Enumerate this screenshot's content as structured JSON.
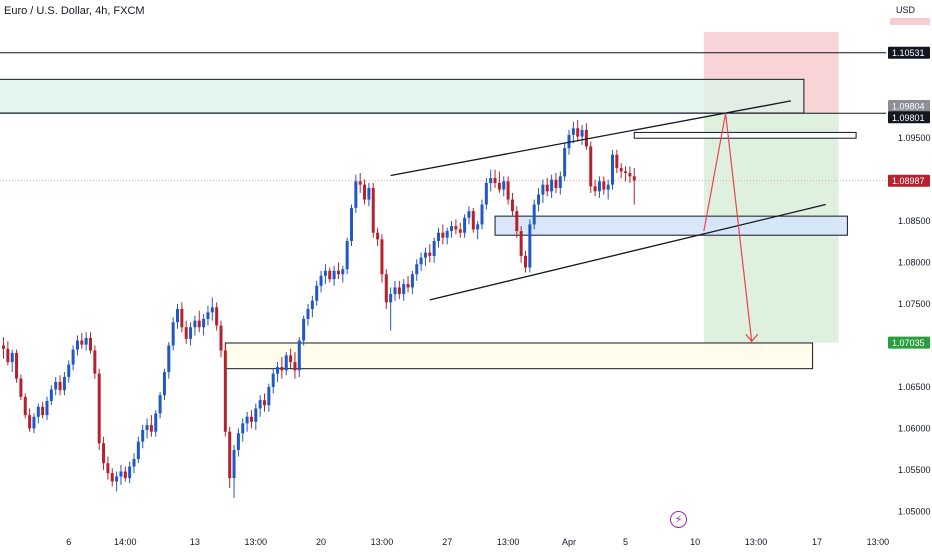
{
  "header": {
    "symbol_title": "Euro / U.S. Dollar, 4h, FXCM"
  },
  "chart_data": {
    "type": "candlestick",
    "title": "Euro / U.S. Dollar, 4h, FXCM",
    "currency_label": "USD",
    "ylim": [
      1.0475,
      1.1095
    ],
    "y_ticks": [
      1.05,
      1.055,
      1.06,
      1.065,
      1.07,
      1.075,
      1.08,
      1.085,
      1.095
    ],
    "x_labels": [
      {
        "i": 15,
        "label": "6"
      },
      {
        "i": 28,
        "label": "14:00"
      },
      {
        "i": 44,
        "label": "13"
      },
      {
        "i": 58,
        "label": "13:00"
      },
      {
        "i": 73,
        "label": "20"
      },
      {
        "i": 87,
        "label": "13:00"
      },
      {
        "i": 102,
        "label": "27"
      },
      {
        "i": 116,
        "label": "13:00"
      },
      {
        "i": 130,
        "label": "Apr"
      },
      {
        "i": 143,
        "label": "5"
      },
      {
        "i": 159,
        "label": "10"
      },
      {
        "i": 173,
        "label": "13:00"
      },
      {
        "i": 187,
        "label": "17"
      },
      {
        "i": 201,
        "label": "13:00"
      }
    ],
    "price_labels": [
      {
        "value": "1.10531",
        "price": 1.10531,
        "style": "dark"
      },
      {
        "value": "1.09804",
        "price": 1.09804,
        "style": "grey"
      },
      {
        "value": "1.09801",
        "price": 1.09801,
        "style": "dark"
      },
      {
        "value": "1.08987",
        "price": 1.08987,
        "style": "red"
      },
      {
        "value": "1.07035",
        "price": 1.07035,
        "style": "green"
      }
    ],
    "horizontal_lines": [
      1.10531,
      1.09801
    ],
    "zones": [
      {
        "name": "supply-zone",
        "x1": -1,
        "x2": 184,
        "y1": 1.09804,
        "y2": 1.1021,
        "fill": "#dcf2ea",
        "stroke": "#131722"
      },
      {
        "name": "small-resistance-box",
        "x1": 145,
        "x2": 196,
        "y1": 1.095,
        "y2": 1.0957,
        "fill": "#ffffff",
        "stroke": "#131722"
      },
      {
        "name": "mid-support-box",
        "x1": 113,
        "x2": 194,
        "y1": 1.0833,
        "y2": 1.0856,
        "fill": "#d4e6f9",
        "stroke": "#131722"
      },
      {
        "name": "demand-zone",
        "x1": 51,
        "x2": 186,
        "y1": 1.0672,
        "y2": 1.0703,
        "fill": "#fefce9",
        "stroke": "#131722"
      }
    ],
    "position": {
      "x1": 161,
      "x2": 192,
      "entry": 1.09804,
      "stop": 1.1078,
      "target": 1.07035,
      "stop_color": "#f7ccd0",
      "target_color": "#d8efd8"
    },
    "trend_lines": [
      {
        "name": "upper-channel-line",
        "x1": 89,
        "y1": 1.0905,
        "x2": 181,
        "y2": 1.0995
      },
      {
        "name": "lower-channel-line",
        "x1": 98,
        "y1": 1.0755,
        "x2": 189,
        "y2": 1.087
      }
    ],
    "projection": [
      {
        "x": 161,
        "y": 1.0838
      },
      {
        "x": 166,
        "y": 1.098
      },
      {
        "x": 172,
        "y": 1.0705
      }
    ],
    "candles": [
      [
        1.07,
        1.071,
        1.0684,
        1.0696
      ],
      [
        1.0696,
        1.0705,
        1.0676,
        1.068
      ],
      [
        1.068,
        1.0695,
        1.0668,
        1.0691
      ],
      [
        1.0691,
        1.0695,
        1.0655,
        1.066
      ],
      [
        1.066,
        1.0665,
        1.0634,
        1.0638
      ],
      [
        1.0638,
        1.0642,
        1.0612,
        1.0616
      ],
      [
        1.0616,
        1.0624,
        1.0596,
        1.06
      ],
      [
        1.06,
        1.0618,
        1.0594,
        1.0614
      ],
      [
        1.0614,
        1.063,
        1.0606,
        1.0626
      ],
      [
        1.0626,
        1.0632,
        1.0612,
        1.0616
      ],
      [
        1.0616,
        1.0638,
        1.061,
        1.0633
      ],
      [
        1.0633,
        1.0652,
        1.0628,
        1.0647
      ],
      [
        1.0647,
        1.0662,
        1.064,
        1.0656
      ],
      [
        1.0656,
        1.0664,
        1.064,
        1.0646
      ],
      [
        1.0646,
        1.0668,
        1.064,
        1.0662
      ],
      [
        1.0662,
        1.0682,
        1.0655,
        1.0677
      ],
      [
        1.0677,
        1.07,
        1.067,
        1.0695
      ],
      [
        1.0695,
        1.0712,
        1.0688,
        1.0706
      ],
      [
        1.0706,
        1.0715,
        1.0696,
        1.0701
      ],
      [
        1.0701,
        1.0716,
        1.0694,
        1.0709
      ],
      [
        1.0709,
        1.0716,
        1.069,
        1.0694
      ],
      [
        1.0694,
        1.07,
        1.066,
        1.0666
      ],
      [
        1.0666,
        1.0672,
        1.0574,
        1.0582
      ],
      [
        1.0582,
        1.059,
        1.055,
        1.0558
      ],
      [
        1.0558,
        1.0566,
        1.0538,
        1.0546
      ],
      [
        1.0546,
        1.0552,
        1.053,
        1.0536
      ],
      [
        1.0536,
        1.0548,
        1.0524,
        1.0542
      ],
      [
        1.0542,
        1.0556,
        1.0532,
        1.0548
      ],
      [
        1.0548,
        1.0554,
        1.0536,
        1.054
      ],
      [
        1.054,
        1.056,
        1.0534,
        1.0554
      ],
      [
        1.0554,
        1.057,
        1.0546,
        1.0563
      ],
      [
        1.0563,
        1.059,
        1.0558,
        1.0584
      ],
      [
        1.0584,
        1.0604,
        1.0576,
        1.0598
      ],
      [
        1.0598,
        1.0612,
        1.0588,
        1.0604
      ],
      [
        1.0604,
        1.0616,
        1.059,
        1.0596
      ],
      [
        1.0596,
        1.0622,
        1.059,
        1.0618
      ],
      [
        1.0618,
        1.0644,
        1.0612,
        1.064
      ],
      [
        1.064,
        1.0672,
        1.0634,
        1.0668
      ],
      [
        1.0668,
        1.0704,
        1.066,
        1.07
      ],
      [
        1.07,
        1.0734,
        1.0694,
        1.0728
      ],
      [
        1.0728,
        1.075,
        1.072,
        1.0744
      ],
      [
        1.0744,
        1.0752,
        1.0716,
        1.0722
      ],
      [
        1.0722,
        1.073,
        1.0702,
        1.0708
      ],
      [
        1.0708,
        1.0728,
        1.07,
        1.0722
      ],
      [
        1.0722,
        1.0736,
        1.0712,
        1.073
      ],
      [
        1.073,
        1.0742,
        1.0716,
        1.0722
      ],
      [
        1.0722,
        1.0738,
        1.0712,
        1.0732
      ],
      [
        1.0732,
        1.0748,
        1.0724,
        1.074
      ],
      [
        1.074,
        1.0758,
        1.073,
        1.0746
      ],
      [
        1.0746,
        1.0752,
        1.0718,
        1.0724
      ],
      [
        1.0724,
        1.073,
        1.0686,
        1.0694
      ],
      [
        1.0694,
        1.07,
        1.059,
        1.0596
      ],
      [
        1.0596,
        1.0602,
        1.0528,
        1.054
      ],
      [
        1.054,
        1.058,
        1.0516,
        1.0574
      ],
      [
        1.0574,
        1.06,
        1.0566,
        1.0594
      ],
      [
        1.0594,
        1.0612,
        1.0584,
        1.0606
      ],
      [
        1.0606,
        1.062,
        1.0596,
        1.0614
      ],
      [
        1.0614,
        1.0622,
        1.06,
        1.0608
      ],
      [
        1.0608,
        1.063,
        1.0598,
        1.0624
      ],
      [
        1.0624,
        1.064,
        1.0614,
        1.0634
      ],
      [
        1.0634,
        1.0642,
        1.062,
        1.0628
      ],
      [
        1.0628,
        1.0654,
        1.062,
        1.065
      ],
      [
        1.065,
        1.0672,
        1.0642,
        1.0666
      ],
      [
        1.0666,
        1.068,
        1.0656,
        1.0674
      ],
      [
        1.0674,
        1.0686,
        1.066,
        1.067
      ],
      [
        1.067,
        1.0692,
        1.0664,
        1.0688
      ],
      [
        1.0688,
        1.0696,
        1.0672,
        1.068
      ],
      [
        1.068,
        1.0692,
        1.066,
        1.067
      ],
      [
        1.067,
        1.071,
        1.0662,
        1.0706
      ],
      [
        1.0706,
        1.0736,
        1.07,
        1.0732
      ],
      [
        1.0732,
        1.075,
        1.0724,
        1.0744
      ],
      [
        1.0744,
        1.076,
        1.0734,
        1.0754
      ],
      [
        1.0754,
        1.0778,
        1.0748,
        1.0772
      ],
      [
        1.0772,
        1.079,
        1.0764,
        1.0784
      ],
      [
        1.0784,
        1.0798,
        1.0774,
        1.079
      ],
      [
        1.079,
        1.0794,
        1.0776,
        1.078
      ],
      [
        1.078,
        1.0796,
        1.0772,
        1.079
      ],
      [
        1.079,
        1.08,
        1.078,
        1.0786
      ],
      [
        1.0786,
        1.0796,
        1.0776,
        1.0792
      ],
      [
        1.0792,
        1.083,
        1.0786,
        1.0826
      ],
      [
        1.0826,
        1.087,
        1.082,
        1.0866
      ],
      [
        1.0866,
        1.0906,
        1.086,
        1.0898
      ],
      [
        1.0898,
        1.0908,
        1.0884,
        1.0894
      ],
      [
        1.0894,
        1.09,
        1.087,
        1.0876
      ],
      [
        1.0876,
        1.0896,
        1.0868,
        1.089
      ],
      [
        1.089,
        1.0896,
        1.083,
        1.0836
      ],
      [
        1.0836,
        1.0842,
        1.082,
        1.0828
      ],
      [
        1.0828,
        1.0834,
        1.0776,
        1.0786
      ],
      [
        1.0786,
        1.0792,
        1.0744,
        1.0752
      ],
      [
        1.0752,
        1.077,
        1.0718,
        1.0762
      ],
      [
        1.0762,
        1.0778,
        1.0754,
        1.077
      ],
      [
        1.077,
        1.0778,
        1.0756,
        1.0762
      ],
      [
        1.0762,
        1.078,
        1.0754,
        1.0774
      ],
      [
        1.0774,
        1.0784,
        1.0764,
        1.077
      ],
      [
        1.077,
        1.079,
        1.0762,
        1.0786
      ],
      [
        1.0786,
        1.0804,
        1.0778,
        1.0798
      ],
      [
        1.0798,
        1.0812,
        1.079,
        1.0806
      ],
      [
        1.0806,
        1.0818,
        1.0796,
        1.0812
      ],
      [
        1.0812,
        1.0822,
        1.08,
        1.0808
      ],
      [
        1.0808,
        1.083,
        1.08,
        1.0826
      ],
      [
        1.0826,
        1.0842,
        1.0818,
        1.0836
      ],
      [
        1.0836,
        1.0846,
        1.0822,
        1.083
      ],
      [
        1.083,
        1.0842,
        1.0822,
        1.0838
      ],
      [
        1.0838,
        1.085,
        1.083,
        1.0844
      ],
      [
        1.0844,
        1.0852,
        1.0834,
        1.084
      ],
      [
        1.084,
        1.0848,
        1.083,
        1.0836
      ],
      [
        1.0836,
        1.0858,
        1.083,
        1.0854
      ],
      [
        1.0854,
        1.0868,
        1.0846,
        1.0862
      ],
      [
        1.0862,
        1.0866,
        1.0836,
        1.084
      ],
      [
        1.084,
        1.085,
        1.0828,
        1.0846
      ],
      [
        1.0846,
        1.0876,
        1.084,
        1.087
      ],
      [
        1.087,
        1.0902,
        1.0864,
        1.0896
      ],
      [
        1.0896,
        1.0912,
        1.0886,
        1.0902
      ],
      [
        1.0902,
        1.0912,
        1.089,
        1.0896
      ],
      [
        1.0896,
        1.091,
        1.0884,
        1.0888
      ],
      [
        1.0888,
        1.0904,
        1.088,
        1.0898
      ],
      [
        1.0898,
        1.0904,
        1.087,
        1.0876
      ],
      [
        1.0876,
        1.0884,
        1.0856,
        1.0862
      ],
      [
        1.0862,
        1.0868,
        1.083,
        1.0838
      ],
      [
        1.0838,
        1.0844,
        1.08,
        1.0808
      ],
      [
        1.0808,
        1.0814,
        1.0788,
        1.0794
      ],
      [
        1.0794,
        1.0852,
        1.0788,
        1.0846
      ],
      [
        1.0846,
        1.0876,
        1.084,
        1.087
      ],
      [
        1.087,
        1.089,
        1.0862,
        1.0882
      ],
      [
        1.0882,
        1.09,
        1.0872,
        1.0894
      ],
      [
        1.0894,
        1.0902,
        1.088,
        1.0886
      ],
      [
        1.0886,
        1.0906,
        1.0878,
        1.09
      ],
      [
        1.09,
        1.0908,
        1.0884,
        1.089
      ],
      [
        1.089,
        1.091,
        1.0882,
        1.0904
      ],
      [
        1.0904,
        1.0944,
        1.0898,
        1.0938
      ],
      [
        1.0938,
        1.096,
        1.093,
        1.0954
      ],
      [
        1.0954,
        1.097,
        1.0944,
        1.0962
      ],
      [
        1.0962,
        1.0972,
        1.0946,
        1.0952
      ],
      [
        1.0952,
        1.0966,
        1.0942,
        1.096
      ],
      [
        1.096,
        1.0968,
        1.0936,
        1.094
      ],
      [
        1.094,
        1.0946,
        1.0884,
        1.0892
      ],
      [
        1.0892,
        1.09,
        1.088,
        1.0886
      ],
      [
        1.0886,
        1.0904,
        1.0878,
        1.0898
      ],
      [
        1.0898,
        1.0904,
        1.0882,
        1.0888
      ],
      [
        1.0888,
        1.09,
        1.0876,
        1.0894
      ],
      [
        1.0894,
        1.0936,
        1.0888,
        1.093
      ],
      [
        1.093,
        1.0936,
        1.0908,
        1.0914
      ],
      [
        1.0914,
        1.092,
        1.0902,
        1.091
      ],
      [
        1.091,
        1.0916,
        1.0898,
        1.0908
      ],
      [
        1.0908,
        1.0916,
        1.0896,
        1.0904
      ],
      [
        1.0904,
        1.0914,
        1.087,
        1.0899
      ]
    ]
  }
}
